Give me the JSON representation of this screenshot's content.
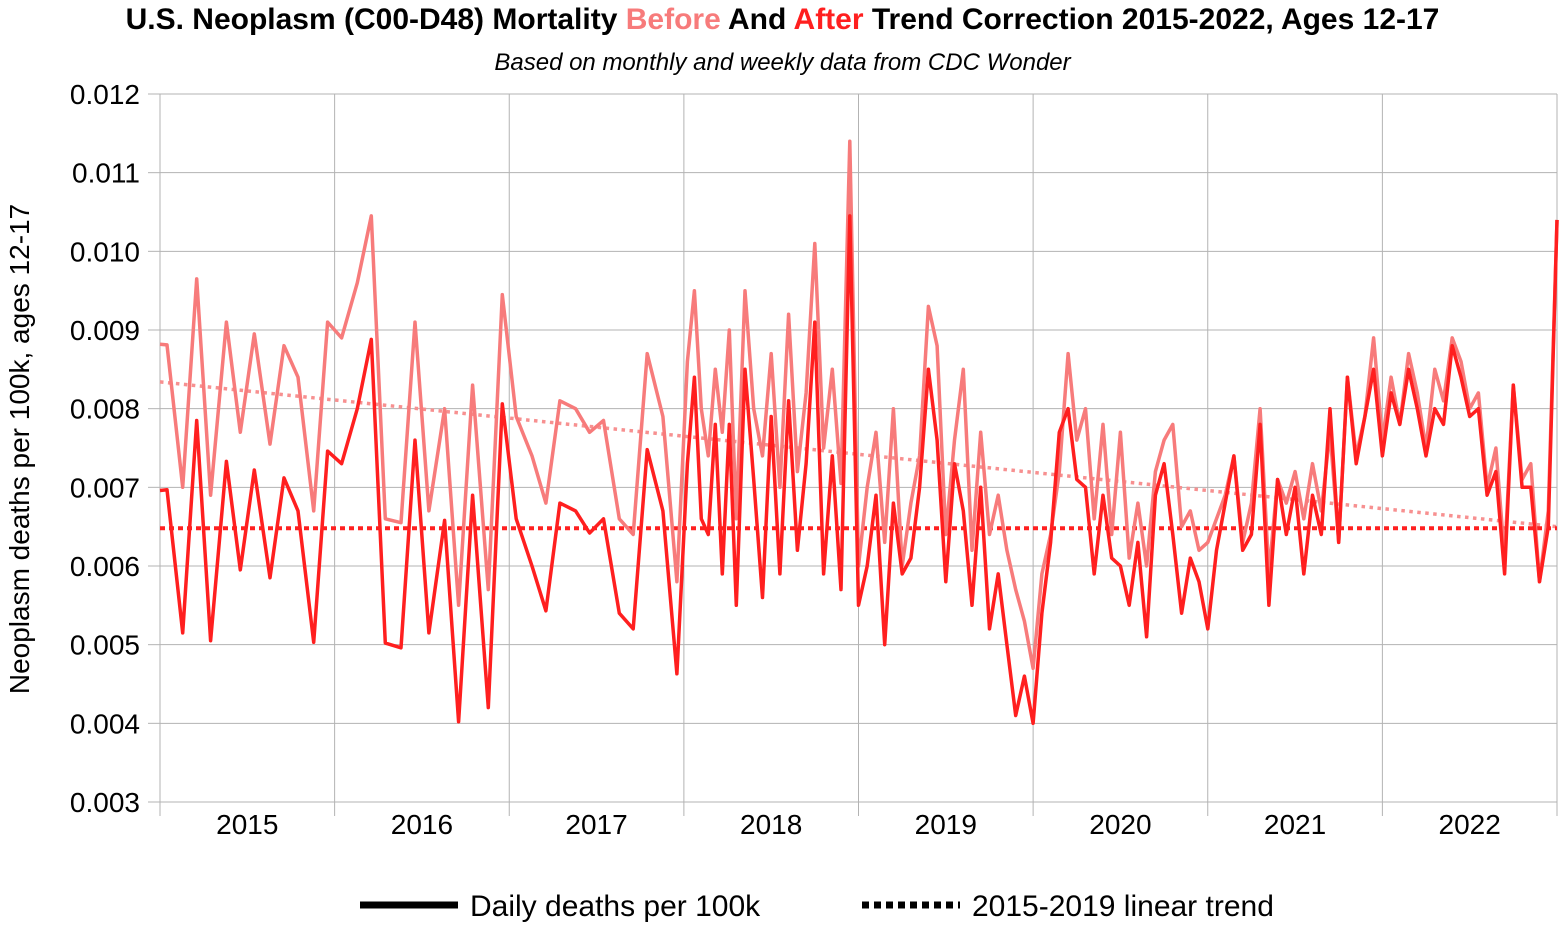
{
  "chart_data": {
    "type": "line",
    "title": {
      "prefix": "U.S. Neoplasm (C00-D48) Mortality ",
      "before_word": "Before",
      "middle": " And ",
      "after_word": "After",
      "suffix": " Trend Correction 2015-2022, Ages 12-17"
    },
    "subtitle": "Based on monthly and weekly data from CDC Wonder",
    "ylabel": "Neoplasm deaths per 100k, ages 12-17",
    "xlabel": "",
    "ylim": [
      0.003,
      0.012
    ],
    "xlim": [
      2015.0,
      2023.0
    ],
    "y_ticks": [
      "0.003",
      "0.004",
      "0.005",
      "0.006",
      "0.007",
      "0.008",
      "0.009",
      "0.010",
      "0.011",
      "0.012"
    ],
    "x_ticks": [
      "2015",
      "2016",
      "2017",
      "2018",
      "2019",
      "2020",
      "2021",
      "2022"
    ],
    "grid": true,
    "legend_position": "bottom",
    "legend": [
      {
        "label": "Daily deaths per 100k",
        "style": "solid"
      },
      {
        "label": "2015-2019 linear trend",
        "style": "dotted"
      }
    ],
    "colors": {
      "before": "#f77b7b",
      "after": "#ff1f1f",
      "trend_before": "#f79090",
      "trend_after": "#ff2020",
      "grid": "#b3b3b3",
      "legend": "#000000"
    },
    "series": [
      {
        "name": "Before",
        "x": [
          2015.0,
          2015.04,
          2015.13,
          2015.21,
          2015.29,
          2015.38,
          2015.46,
          2015.54,
          2015.63,
          2015.71,
          2015.79,
          2015.88,
          2015.96,
          2016.04,
          2016.13,
          2016.21,
          2016.29,
          2016.38,
          2016.46,
          2016.54,
          2016.63,
          2016.71,
          2016.79,
          2016.88,
          2016.96,
          2017.04,
          2017.13,
          2017.21,
          2017.29,
          2017.38,
          2017.46,
          2017.54,
          2017.63,
          2017.71,
          2017.79,
          2017.88,
          2017.96,
          2018.02,
          2018.06,
          2018.1,
          2018.14,
          2018.18,
          2018.22,
          2018.26,
          2018.3,
          2018.35,
          2018.4,
          2018.45,
          2018.5,
          2018.55,
          2018.6,
          2018.65,
          2018.7,
          2018.75,
          2018.8,
          2018.85,
          2018.9,
          2018.95,
          2019.0,
          2019.05,
          2019.1,
          2019.15,
          2019.2,
          2019.25,
          2019.3,
          2019.35,
          2019.4,
          2019.45,
          2019.5,
          2019.55,
          2019.6,
          2019.65,
          2019.7,
          2019.75,
          2019.8,
          2019.85,
          2019.9,
          2019.95,
          2020.0,
          2020.05,
          2020.1,
          2020.15,
          2020.2,
          2020.25,
          2020.3,
          2020.35,
          2020.4,
          2020.45,
          2020.5,
          2020.55,
          2020.6,
          2020.65,
          2020.7,
          2020.75,
          2020.8,
          2020.85,
          2020.9,
          2020.95,
          2021.0,
          2021.05,
          2021.1,
          2021.15,
          2021.2,
          2021.25,
          2021.3,
          2021.35,
          2021.4,
          2021.45,
          2021.5,
          2021.55,
          2021.6,
          2021.65,
          2021.7,
          2021.75,
          2021.8,
          2021.85,
          2021.9,
          2021.95,
          2022.0,
          2022.05,
          2022.1,
          2022.15,
          2022.2,
          2022.25,
          2022.3,
          2022.35,
          2022.4,
          2022.45,
          2022.5,
          2022.55,
          2022.6,
          2022.65,
          2022.7,
          2022.75,
          2022.8,
          2022.85,
          2022.9,
          2022.95,
          2023.0
        ],
        "values": [
          0.00882,
          0.00881,
          0.007,
          0.00965,
          0.0069,
          0.0091,
          0.0077,
          0.00895,
          0.00755,
          0.0088,
          0.0084,
          0.0067,
          0.0091,
          0.0089,
          0.0096,
          0.01045,
          0.0066,
          0.00655,
          0.0091,
          0.0067,
          0.008,
          0.0055,
          0.0083,
          0.0057,
          0.00945,
          0.0079,
          0.0074,
          0.0068,
          0.0081,
          0.008,
          0.0077,
          0.00785,
          0.0066,
          0.0064,
          0.0087,
          0.0079,
          0.0058,
          0.0086,
          0.0095,
          0.008,
          0.0074,
          0.0085,
          0.0077,
          0.009,
          0.0066,
          0.0095,
          0.008,
          0.0074,
          0.0087,
          0.007,
          0.0092,
          0.0072,
          0.0082,
          0.0101,
          0.0075,
          0.0085,
          0.00705,
          0.0114,
          0.006,
          0.007,
          0.0077,
          0.0063,
          0.008,
          0.006,
          0.0068,
          0.0074,
          0.0093,
          0.0088,
          0.0064,
          0.0076,
          0.0085,
          0.0062,
          0.0077,
          0.0064,
          0.0069,
          0.0062,
          0.0057,
          0.0053,
          0.0047,
          0.0059,
          0.0064,
          0.0072,
          0.0087,
          0.0076,
          0.008,
          0.0066,
          0.0078,
          0.0064,
          0.0077,
          0.0061,
          0.0068,
          0.006,
          0.0072,
          0.0076,
          0.0078,
          0.0065,
          0.0067,
          0.0062,
          0.0063,
          0.0066,
          0.0069,
          0.0074,
          0.0063,
          0.0068,
          0.008,
          0.0059,
          0.0071,
          0.0068,
          0.0072,
          0.0066,
          0.0073,
          0.0067,
          0.0077,
          0.0063,
          0.0084,
          0.0074,
          0.0079,
          0.0089,
          0.0076,
          0.0084,
          0.0078,
          0.0087,
          0.0082,
          0.0075,
          0.0085,
          0.0081,
          0.0089,
          0.0086,
          0.008,
          0.0082,
          0.007,
          0.0075,
          0.0061,
          0.0083,
          0.0071,
          0.0073,
          0.0058,
          0.0067,
          0.0104
        ]
      },
      {
        "name": "After",
        "x": [
          2015.0,
          2015.04,
          2015.13,
          2015.21,
          2015.29,
          2015.38,
          2015.46,
          2015.54,
          2015.63,
          2015.71,
          2015.79,
          2015.88,
          2015.96,
          2016.04,
          2016.13,
          2016.21,
          2016.29,
          2016.38,
          2016.46,
          2016.54,
          2016.63,
          2016.71,
          2016.79,
          2016.88,
          2016.96,
          2017.04,
          2017.13,
          2017.21,
          2017.29,
          2017.38,
          2017.46,
          2017.54,
          2017.63,
          2017.71,
          2017.79,
          2017.88,
          2017.96,
          2018.02,
          2018.06,
          2018.1,
          2018.14,
          2018.18,
          2018.22,
          2018.26,
          2018.3,
          2018.35,
          2018.4,
          2018.45,
          2018.5,
          2018.55,
          2018.6,
          2018.65,
          2018.7,
          2018.75,
          2018.8,
          2018.85,
          2018.9,
          2018.95,
          2019.0,
          2019.05,
          2019.1,
          2019.15,
          2019.2,
          2019.25,
          2019.3,
          2019.35,
          2019.4,
          2019.45,
          2019.5,
          2019.55,
          2019.6,
          2019.65,
          2019.7,
          2019.75,
          2019.8,
          2019.85,
          2019.9,
          2019.95,
          2020.0,
          2020.05,
          2020.1,
          2020.15,
          2020.2,
          2020.25,
          2020.3,
          2020.35,
          2020.4,
          2020.45,
          2020.5,
          2020.55,
          2020.6,
          2020.65,
          2020.7,
          2020.75,
          2020.8,
          2020.85,
          2020.9,
          2020.95,
          2021.0,
          2021.05,
          2021.1,
          2021.15,
          2021.2,
          2021.25,
          2021.3,
          2021.35,
          2021.4,
          2021.45,
          2021.5,
          2021.55,
          2021.6,
          2021.65,
          2021.7,
          2021.75,
          2021.8,
          2021.85,
          2021.9,
          2021.95,
          2022.0,
          2022.05,
          2022.1,
          2022.15,
          2022.2,
          2022.25,
          2022.3,
          2022.35,
          2022.4,
          2022.45,
          2022.5,
          2022.55,
          2022.6,
          2022.65,
          2022.7,
          2022.75,
          2022.8,
          2022.85,
          2022.9,
          2022.95,
          2023.0
        ],
        "values": [
          0.00696,
          0.00697,
          0.00515,
          0.00785,
          0.00505,
          0.00733,
          0.00595,
          0.00722,
          0.00585,
          0.00712,
          0.0067,
          0.00503,
          0.00746,
          0.0073,
          0.008,
          0.00888,
          0.00502,
          0.00496,
          0.0076,
          0.00515,
          0.00658,
          0.00402,
          0.0069,
          0.0042,
          0.00806,
          0.0066,
          0.006,
          0.00543,
          0.0068,
          0.0067,
          0.00642,
          0.0066,
          0.0054,
          0.0052,
          0.00748,
          0.0067,
          0.00463,
          0.0073,
          0.0084,
          0.0066,
          0.0064,
          0.0078,
          0.0059,
          0.0078,
          0.0055,
          0.0085,
          0.0071,
          0.0056,
          0.0079,
          0.0059,
          0.0081,
          0.0062,
          0.0073,
          0.0091,
          0.0059,
          0.0074,
          0.0057,
          0.01045,
          0.0055,
          0.006,
          0.0069,
          0.005,
          0.0068,
          0.0059,
          0.0061,
          0.007,
          0.0085,
          0.0076,
          0.0058,
          0.0073,
          0.0067,
          0.0055,
          0.007,
          0.0052,
          0.0059,
          0.005,
          0.0041,
          0.0046,
          0.004,
          0.0054,
          0.0063,
          0.0077,
          0.008,
          0.0071,
          0.007,
          0.0059,
          0.0069,
          0.0061,
          0.006,
          0.0055,
          0.0063,
          0.0051,
          0.0069,
          0.0073,
          0.0064,
          0.0054,
          0.0061,
          0.0058,
          0.0052,
          0.0062,
          0.0068,
          0.0074,
          0.0062,
          0.0064,
          0.0078,
          0.0055,
          0.0071,
          0.0064,
          0.007,
          0.0059,
          0.0069,
          0.0064,
          0.008,
          0.0063,
          0.0084,
          0.0073,
          0.0079,
          0.0085,
          0.0074,
          0.0082,
          0.0078,
          0.0085,
          0.008,
          0.0074,
          0.008,
          0.0078,
          0.0088,
          0.0084,
          0.0079,
          0.008,
          0.0069,
          0.0072,
          0.0059,
          0.0083,
          0.007,
          0.007,
          0.0058,
          0.0065,
          0.0104
        ]
      },
      {
        "name": "Before trend",
        "x": [
          2015.0,
          2023.0
        ],
        "values": [
          0.00834,
          0.0065
        ]
      },
      {
        "name": "After trend",
        "x": [
          2015.0,
          2023.0
        ],
        "values": [
          0.00648,
          0.00648
        ]
      }
    ]
  }
}
